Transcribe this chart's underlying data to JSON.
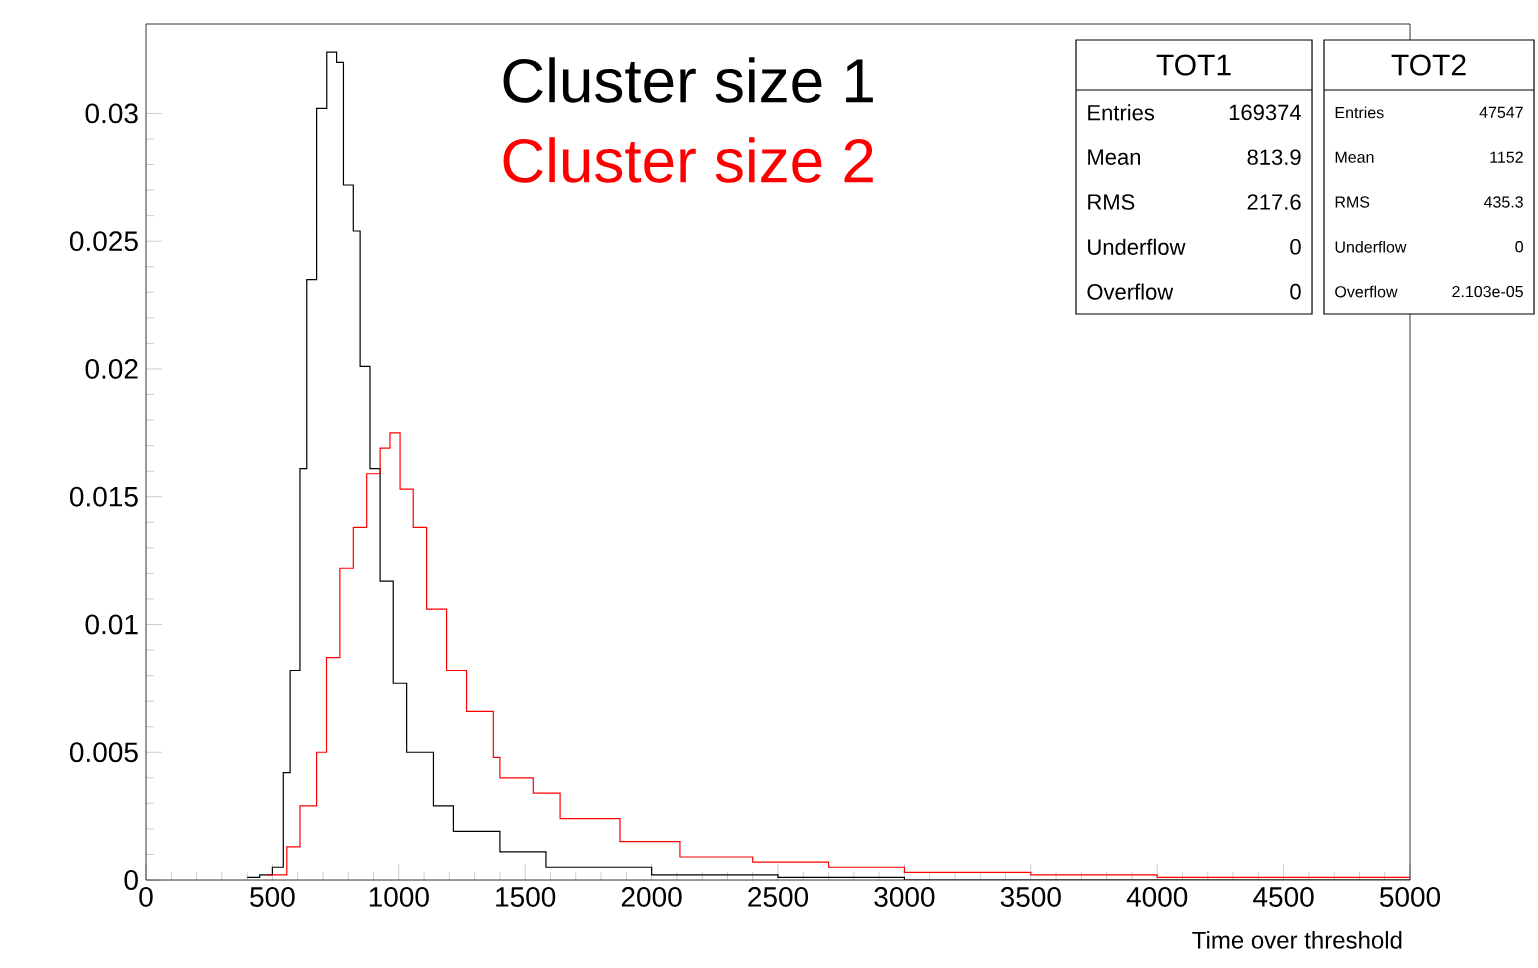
{
  "chart_data": {
    "type": "step",
    "xlabel": "Time over threshold",
    "xlim": [
      0,
      5000
    ],
    "ylim": [
      0,
      0.0335
    ],
    "xticks": [
      0,
      500,
      1000,
      1500,
      2000,
      2500,
      3000,
      3500,
      4000,
      4500,
      5000
    ],
    "yticks": [
      0,
      0.005,
      0.01,
      0.015,
      0.02,
      0.025,
      0.03
    ],
    "series": [
      {
        "name": "Cluster size 1",
        "color": "#000000",
        "x": [
          400,
          450,
          500,
          543,
          570,
          609,
          636,
          675,
          715,
          754,
          781,
          820,
          847,
          886,
          926,
          978,
          1031,
          1137,
          1216,
          1400,
          1582,
          2000,
          2500,
          3000,
          5000
        ],
        "values": [
          0.0001,
          0.0002,
          0.0005,
          0.0042,
          0.0082,
          0.0161,
          0.0235,
          0.0302,
          0.0324,
          0.032,
          0.0272,
          0.0254,
          0.0201,
          0.0161,
          0.0117,
          0.0077,
          0.005,
          0.0029,
          0.0019,
          0.0011,
          0.0005,
          0.0002,
          0.0001,
          0,
          0
        ]
      },
      {
        "name": "Cluster size 2",
        "color": "#ff0000",
        "x": [
          477,
          557,
          609,
          675,
          714,
          767,
          820,
          873,
          926,
          965,
          1005,
          1057,
          1110,
          1189,
          1268,
          1374,
          1400,
          1532,
          1638,
          1875,
          2112,
          2400,
          2700,
          3000,
          3500,
          4000,
          5000
        ],
        "values": [
          0.0002,
          0.0013,
          0.0029,
          0.005,
          0.0087,
          0.0122,
          0.0138,
          0.0159,
          0.0169,
          0.0175,
          0.0153,
          0.0138,
          0.0106,
          0.0082,
          0.0066,
          0.0048,
          0.004,
          0.0034,
          0.0024,
          0.0015,
          0.0009,
          0.0007,
          0.0005,
          0.0003,
          0.0002,
          0.0001,
          0.0001
        ]
      }
    ],
    "annotations": [
      "TOT1",
      "Entries",
      "169374",
      "Mean",
      "813.9",
      "RMS",
      "217.6",
      "Underflow",
      "0",
      "Overflow",
      "0",
      "TOT2",
      "Entries",
      "47547",
      "Mean",
      "1152",
      "RMS",
      "435.3",
      "Underflow",
      "0",
      "Overflow",
      "2.103e-05"
    ]
  }
}
